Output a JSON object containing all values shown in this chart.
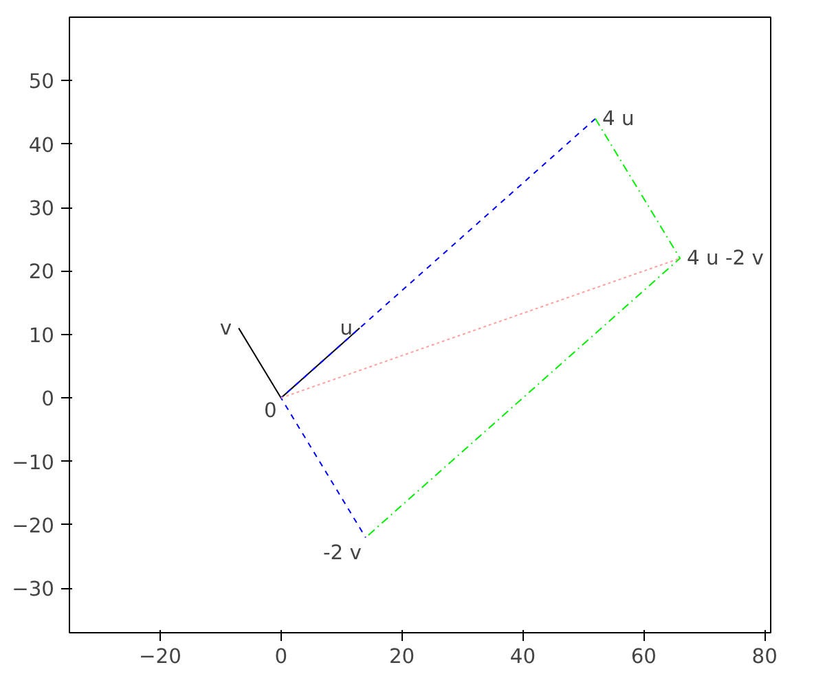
{
  "chart_data": {
    "type": "line",
    "xlim": [
      -35,
      81
    ],
    "ylim": [
      -37,
      60
    ],
    "xticks": [
      -20,
      0,
      20,
      40,
      60,
      80
    ],
    "yticks": [
      -30,
      -20,
      -10,
      0,
      10,
      20,
      30,
      40,
      50
    ],
    "grid": false,
    "series": [
      {
        "color": "#000000",
        "x": [
          0,
          13
        ],
        "values": [
          0,
          11
        ],
        "line_style": "solid"
      },
      {
        "color": "#000000",
        "x": [
          0,
          -7
        ],
        "values": [
          0,
          11
        ],
        "line_style": "solid"
      },
      {
        "color": "#0000ff",
        "x": [
          52,
          0,
          14
        ],
        "values": [
          44,
          0,
          -22
        ],
        "line_style": "dashed"
      },
      {
        "color": "#00ee00",
        "x": [
          52,
          66,
          14
        ],
        "values": [
          44,
          22,
          -22
        ],
        "line_style": "dashdot"
      },
      {
        "color": "#ffa0a0",
        "x": [
          0,
          66
        ],
        "values": [
          0,
          22
        ],
        "line_style": "dotted"
      }
    ],
    "annotations": [
      {
        "text": "u",
        "x": 13,
        "y": 11
      },
      {
        "text": "v",
        "x": -7,
        "y": 11
      },
      {
        "text": "0",
        "x": 0,
        "y": 0
      },
      {
        "text": "4 u",
        "x": 52,
        "y": 44
      },
      {
        "text": "-2 v",
        "x": 14,
        "y": -22
      },
      {
        "text": "4 u -2 v",
        "x": 66,
        "y": 22
      }
    ]
  }
}
